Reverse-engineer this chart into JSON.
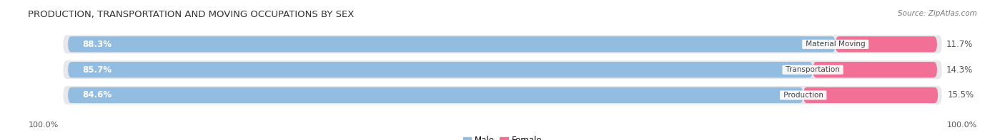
{
  "title": "PRODUCTION, TRANSPORTATION AND MOVING OCCUPATIONS BY SEX",
  "source": "Source: ZipAtlas.com",
  "categories": [
    "Material Moving",
    "Transportation",
    "Production"
  ],
  "male_values": [
    88.3,
    85.7,
    84.6
  ],
  "female_values": [
    11.7,
    14.3,
    15.5
  ],
  "male_color": "#92bce0",
  "female_color": "#f27096",
  "row_bg_color": "#e8e8ec",
  "title_fontsize": 9.5,
  "source_fontsize": 7.5,
  "label_fontsize": 8.5,
  "pct_fontsize": 8.5,
  "tick_fontsize": 8,
  "legend_fontsize": 8.5,
  "background_color": "#ffffff",
  "left_label": "100.0%",
  "right_label": "100.0%",
  "bar_rounding": 0.35,
  "row_rounding": 0.35
}
